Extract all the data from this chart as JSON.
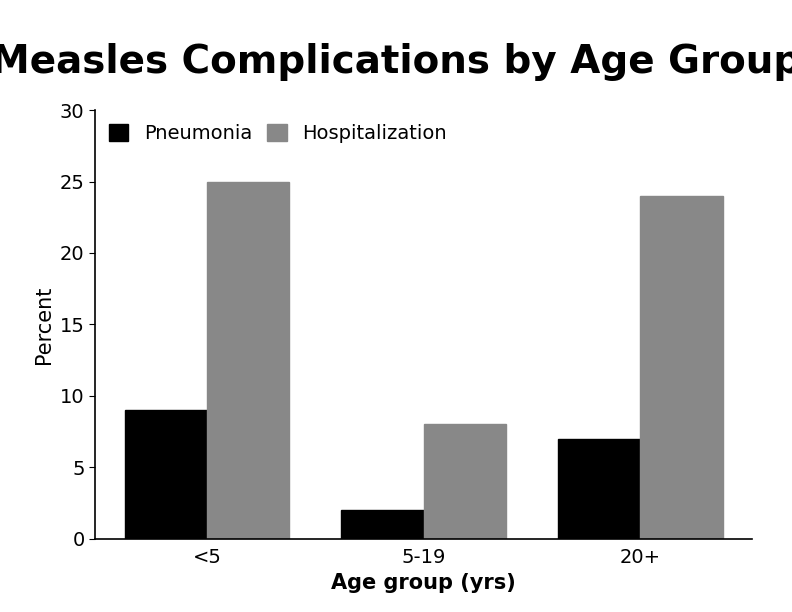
{
  "title": "Measles Complications by Age Group",
  "categories": [
    "<5",
    "5-19",
    "20+"
  ],
  "pneumonia": [
    9,
    2,
    7
  ],
  "hospitalization": [
    25,
    8,
    24
  ],
  "bar_color_pneumonia": "#000000",
  "bar_color_hospitalization": "#888888",
  "ylabel": "Percent",
  "xlabel": "Age group (yrs)",
  "ylim": [
    0,
    30
  ],
  "yticks": [
    0,
    5,
    10,
    15,
    20,
    25,
    30
  ],
  "legend_labels": [
    "Pneumonia",
    "Hospitalization"
  ],
  "title_fontsize": 28,
  "axis_label_fontsize": 15,
  "tick_fontsize": 14,
  "legend_fontsize": 14,
  "bar_width": 0.38,
  "background_color": "#ffffff"
}
